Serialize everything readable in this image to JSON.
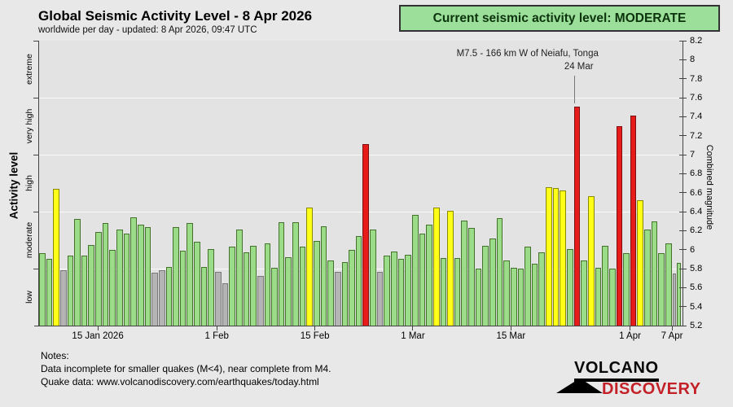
{
  "header": {
    "title": "Global Seismic Activity Level - 8 Apr 2026",
    "subtitle": "worldwide per day - updated:  8 Apr 2026, 09:47 UTC"
  },
  "status_banner": {
    "text": "Current seismic activity level: MODERATE",
    "background": "#9bdf9b",
    "border_color": "#333333"
  },
  "annotation": {
    "line1": "M7.5 - 166 km W of Neiafu, Tonga",
    "line2": "24 Mar",
    "day_index": 76
  },
  "chart_data": {
    "type": "bar",
    "title": "Global Seismic Activity Level - 8 Apr 2026",
    "xlabel": "",
    "ylabel_left": "Activity level",
    "ylabel_right": "Combined magnitude",
    "ylim": [
      5.2,
      8.2
    ],
    "grid_values": [
      5.8,
      6.4,
      7.0,
      7.6
    ],
    "left_tick_values": [
      5.8,
      6.4,
      7.0,
      7.6,
      8.2
    ],
    "right_ticks": [
      "5.2",
      "5.4",
      "5.6",
      "5.8",
      "6",
      "6.2",
      "6.4",
      "6.6",
      "6.8",
      "7",
      "7.2",
      "7.4",
      "7.6",
      "7.8",
      "8",
      "8.2"
    ],
    "left_bands": [
      "low",
      "moderate",
      "high",
      "very high",
      "extreme"
    ],
    "x_ticks": [
      {
        "label": "15 Jan 2026",
        "index": 8
      },
      {
        "label": "1 Feb",
        "index": 25
      },
      {
        "label": "15 Feb",
        "index": 39
      },
      {
        "label": "1 Mar",
        "index": 53
      },
      {
        "label": "15 Mar",
        "index": 67
      },
      {
        "label": "1 Apr",
        "index": 84
      },
      {
        "label": "7 Apr",
        "index": 90
      }
    ],
    "categories": [
      "7 Jan",
      "8 Jan",
      "9 Jan",
      "10 Jan",
      "11 Jan",
      "12 Jan",
      "13 Jan",
      "14 Jan",
      "15 Jan",
      "16 Jan",
      "17 Jan",
      "18 Jan",
      "19 Jan",
      "20 Jan",
      "21 Jan",
      "22 Jan",
      "23 Jan",
      "24 Jan",
      "25 Jan",
      "26 Jan",
      "27 Jan",
      "28 Jan",
      "29 Jan",
      "30 Jan",
      "31 Jan",
      "1 Feb",
      "2 Feb",
      "3 Feb",
      "4 Feb",
      "5 Feb",
      "6 Feb",
      "7 Feb",
      "8 Feb",
      "9 Feb",
      "10 Feb",
      "11 Feb",
      "12 Feb",
      "13 Feb",
      "14 Feb",
      "15 Feb",
      "16 Feb",
      "17 Feb",
      "18 Feb",
      "19 Feb",
      "20 Feb",
      "21 Feb",
      "22 Feb",
      "23 Feb",
      "24 Feb",
      "25 Feb",
      "26 Feb",
      "27 Feb",
      "28 Feb",
      "1 Mar",
      "2 Mar",
      "3 Mar",
      "4 Mar",
      "5 Mar",
      "6 Mar",
      "7 Mar",
      "8 Mar",
      "9 Mar",
      "10 Mar",
      "11 Mar",
      "12 Mar",
      "13 Mar",
      "14 Mar",
      "15 Mar",
      "16 Mar",
      "17 Mar",
      "18 Mar",
      "19 Mar",
      "20 Mar",
      "21 Mar",
      "22 Mar",
      "23 Mar",
      "24 Mar",
      "25 Mar",
      "26 Mar",
      "27 Mar",
      "28 Mar",
      "29 Mar",
      "30 Mar",
      "31 Mar",
      "1 Apr",
      "2 Apr",
      "3 Apr",
      "4 Apr",
      "5 Apr",
      "6 Apr",
      "7 Apr",
      "8 Apr"
    ],
    "values": [
      5.96,
      5.9,
      6.64,
      5.78,
      5.94,
      6.32,
      5.94,
      6.05,
      6.19,
      6.28,
      6.0,
      6.21,
      6.17,
      6.34,
      6.26,
      6.24,
      5.76,
      5.78,
      5.82,
      6.24,
      5.99,
      6.28,
      6.08,
      5.82,
      6.01,
      5.77,
      5.65,
      6.03,
      6.21,
      5.97,
      6.04,
      5.72,
      6.07,
      5.81,
      6.29,
      5.92,
      6.29,
      6.03,
      6.44,
      6.09,
      6.25,
      5.89,
      5.77,
      5.87,
      6.0,
      6.14,
      7.11,
      6.21,
      5.77,
      5.94,
      5.98,
      5.9,
      5.95,
      6.37,
      6.17,
      6.26,
      6.44,
      5.91,
      6.41,
      5.91,
      6.31,
      6.23,
      5.8,
      6.04,
      6.12,
      6.33,
      5.89,
      5.81,
      5.8,
      6.03,
      5.85,
      5.97,
      6.66,
      6.65,
      6.62,
      6.01,
      7.51,
      5.89,
      6.56,
      5.81,
      6.04,
      5.8,
      7.3,
      5.96,
      7.41,
      6.52,
      6.21,
      6.3,
      5.96,
      6.07,
      5.75,
      5.86
    ],
    "levels": [
      {
        "name": "low",
        "max": 5.8,
        "fill": "#b4b4b4",
        "border": "#787878"
      },
      {
        "name": "moderate",
        "max": 6.4,
        "fill": "#9bdc89",
        "border": "#44722c"
      },
      {
        "name": "high",
        "max": 7.0,
        "fill": "#ffff18",
        "border": "#8a8a00"
      },
      {
        "name": "very high",
        "max": 7.6,
        "fill": "#e81b1b",
        "border": "#7c1010"
      },
      {
        "name": "extreme",
        "max": 99,
        "fill": "#9a0000",
        "border": "#550000"
      }
    ],
    "legend_position": "none",
    "grid": true
  },
  "notes": {
    "title": "Notes:",
    "line1": "Data incomplete for smaller quakes (M<4), near complete from M4.",
    "line2": "Quake data: www.volcanodiscovery.com/earthquakes/today.html"
  },
  "logo": {
    "top": "VOLCANO",
    "bottom": "DISCOVERY",
    "accent_color": "#c32028"
  }
}
